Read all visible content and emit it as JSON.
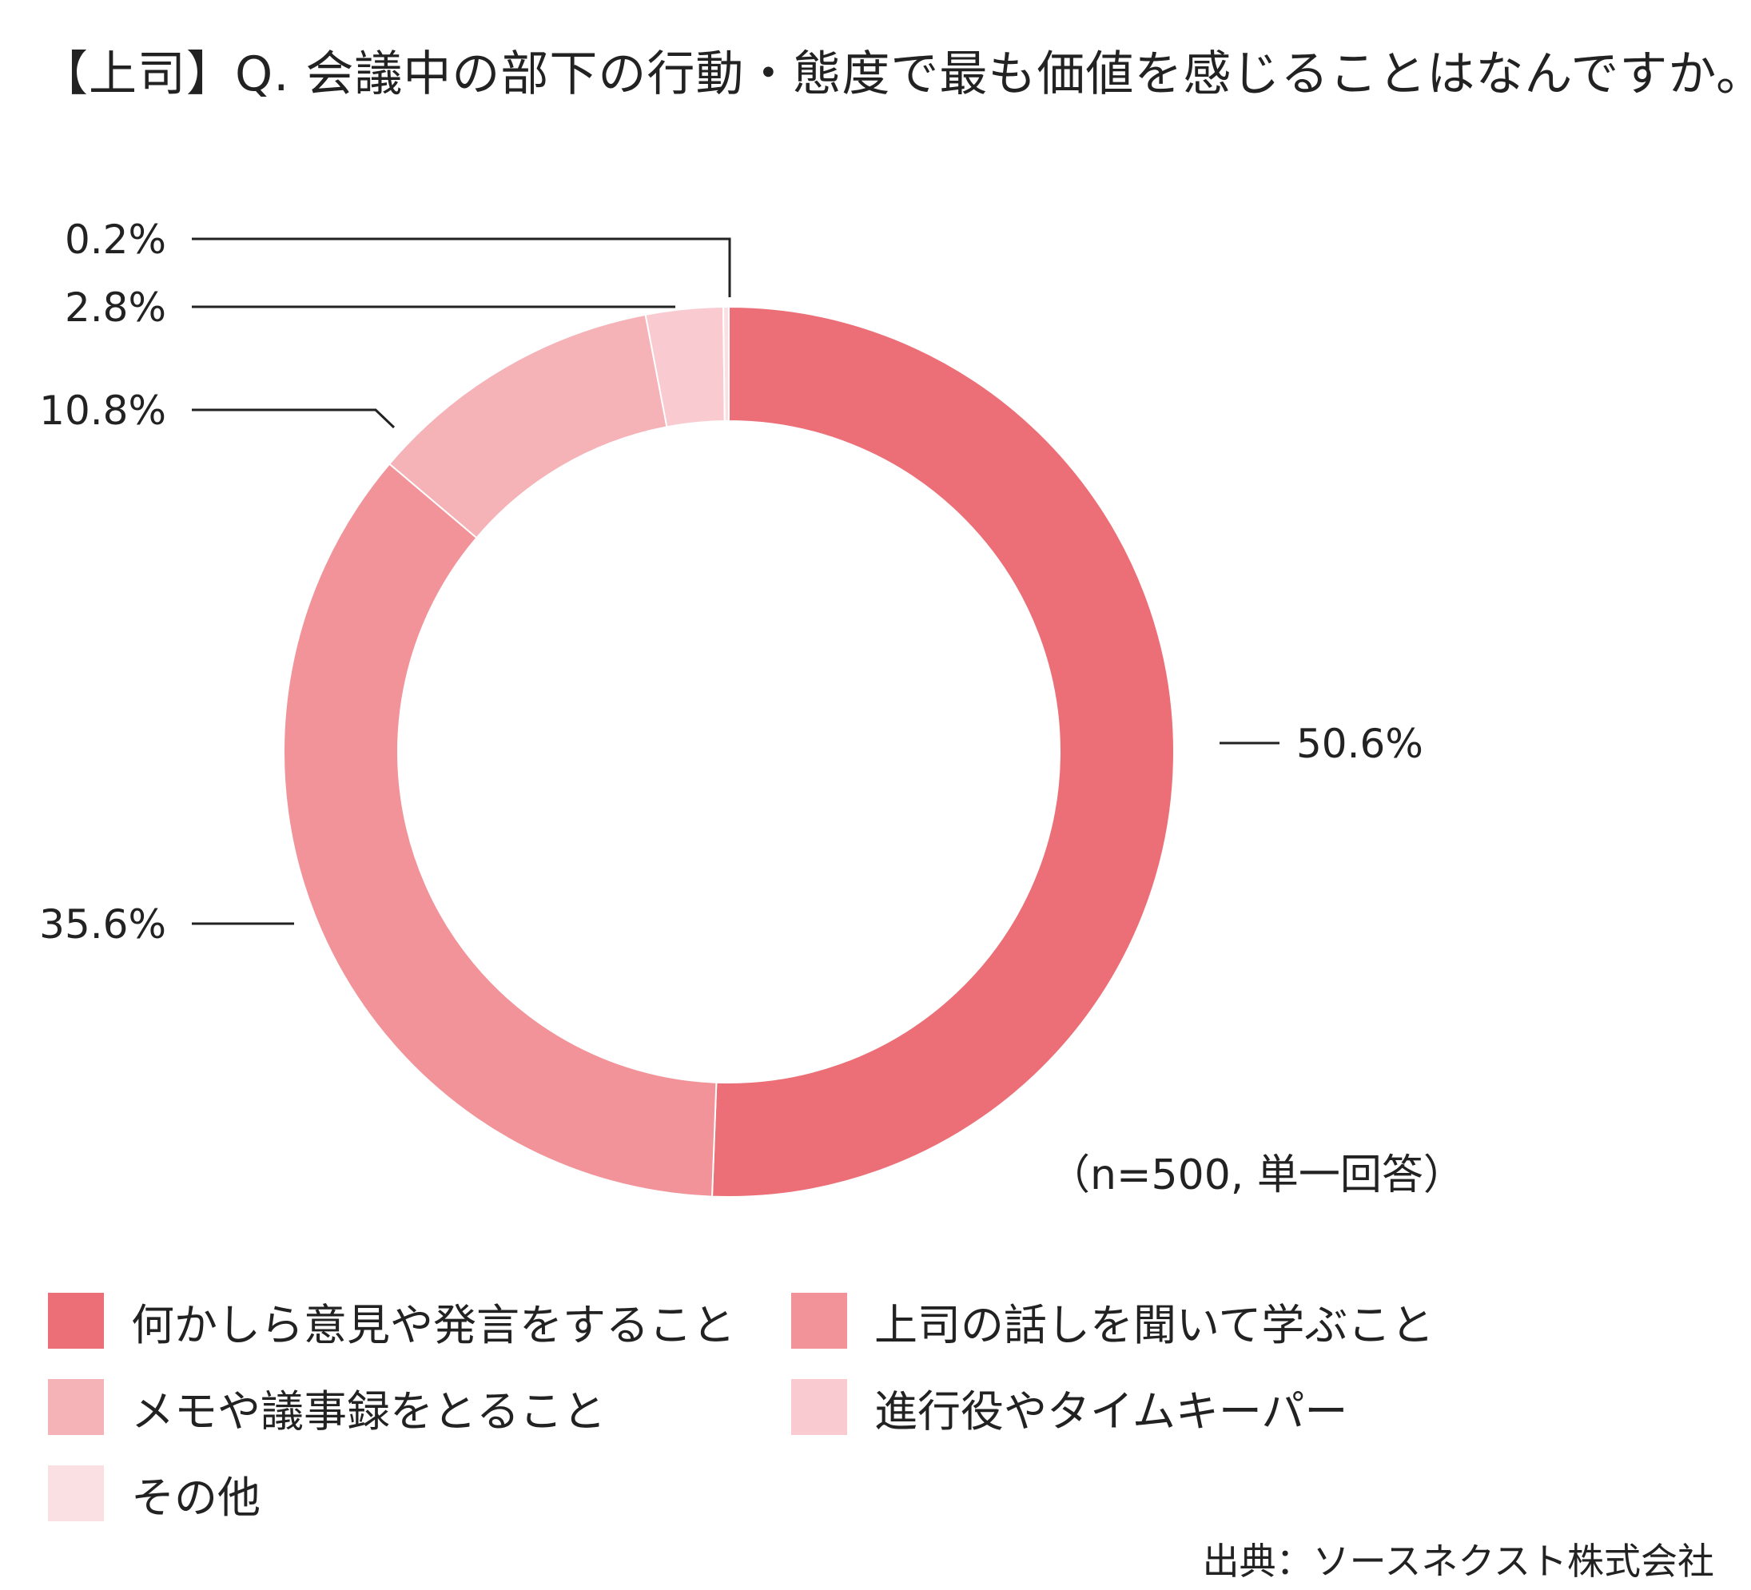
{
  "chart_data": {
    "type": "pie",
    "title": "【上司】Q. 会議中の部下の行動・態度で最も価値を感じることはなんですか。",
    "categories": [
      "何かしら意見や発言をすること",
      "上司の話しを聞いて学ぶこと",
      "メモや議事録をとること",
      "進行役やタイムキーパー",
      "その他"
    ],
    "values": [
      50.6,
      35.6,
      10.8,
      2.8,
      0.2
    ],
    "value_labels": [
      "50.6%",
      "35.6%",
      "10.8%",
      "2.8%",
      "0.2%"
    ],
    "colors": [
      "#ec6e76",
      "#f19399",
      "#f5b2b7",
      "#f9cbd0",
      "#fbe0e3"
    ],
    "donut": true,
    "start": "12 o'clock",
    "direction": "clockwise",
    "legend_position": "bottom"
  },
  "note": "（n=500, 単一回答）",
  "source": "出典：ソースネクスト株式会社"
}
